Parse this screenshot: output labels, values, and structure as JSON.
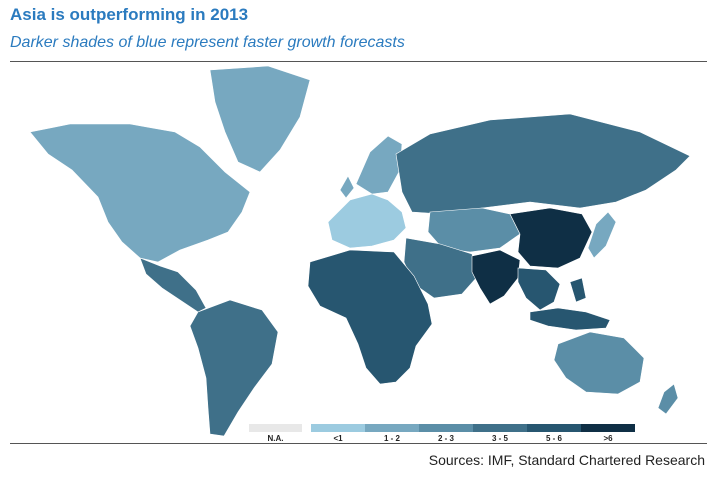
{
  "header": {
    "title": "Asia is outperforming in 2013",
    "subtitle": "Darker shades of blue represent faster growth forecasts"
  },
  "legend": {
    "items": [
      {
        "label": "N.A.",
        "color": "#e8e8e8"
      },
      {
        "label": "<1",
        "color": "#9ccbe0"
      },
      {
        "label": "1 - 2",
        "color": "#77a8c0"
      },
      {
        "label": "2 - 3",
        "color": "#5b8ea7"
      },
      {
        "label": "3 - 5",
        "color": "#3f7089"
      },
      {
        "label": "5 - 6",
        "color": "#275670"
      },
      {
        "label": ">6",
        "color": "#0f2f45"
      }
    ]
  },
  "regions": {
    "north_america": "1 - 2",
    "greenland": "1 - 2",
    "central_america": "3 - 5",
    "south_america": "3 - 5",
    "europe_west": "<1",
    "scandinavia": "1 - 2",
    "russia": "3 - 5",
    "central_asia": "2 - 3",
    "middle_east": "3 - 5",
    "africa": "5 - 6",
    "india": ">6",
    "china": ">6",
    "southeast_asia": "5 - 6",
    "japan": "1 - 2",
    "indonesia": "5 - 6",
    "australia": "2 - 3",
    "new_zealand": "2 - 3"
  },
  "footer": {
    "source": "Sources: IMF, Standard Chartered Research"
  }
}
